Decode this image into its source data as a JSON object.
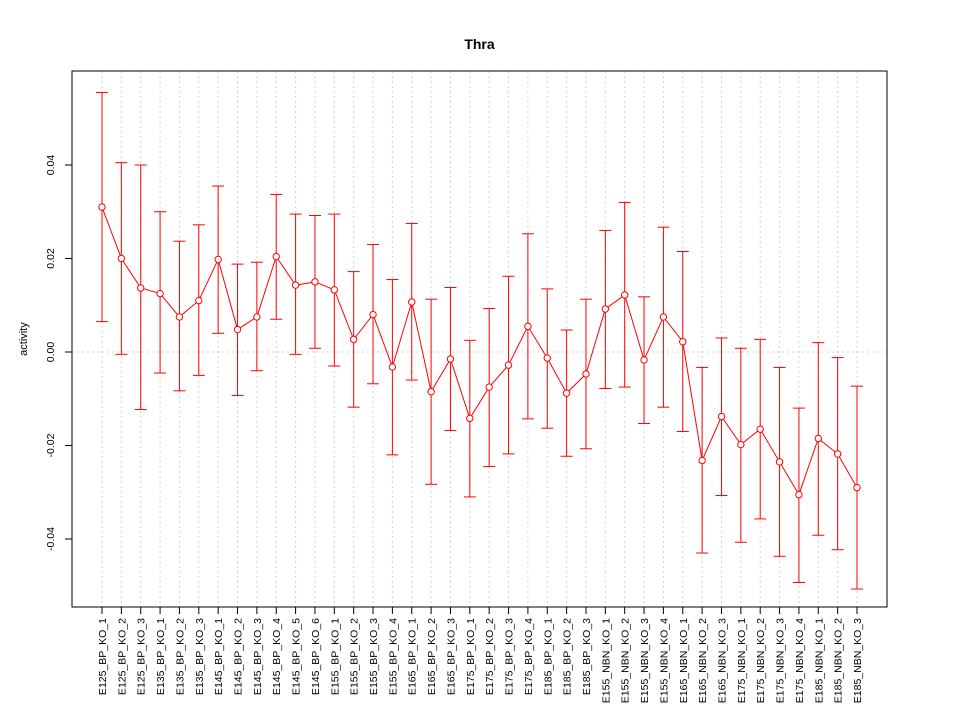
{
  "chart_data": {
    "type": "line",
    "title": "Thra",
    "xlabel": "",
    "ylabel": "activity",
    "ylim": [
      -0.055,
      0.06
    ],
    "yticks": [
      -0.04,
      -0.02,
      0.0,
      0.02,
      0.04
    ],
    "ytick_labels": [
      "-0.04",
      "-0.02",
      "0.00",
      "0.02",
      "0.04"
    ],
    "grid": true,
    "color": "#ff0000",
    "categories": [
      "E125_BP_KO_1",
      "E125_BP_KO_2",
      "E125_BP_KO_3",
      "E135_BP_KO_1",
      "E135_BP_KO_2",
      "E135_BP_KO_3",
      "E145_BP_KO_1",
      "E145_BP_KO_2",
      "E145_BP_KO_3",
      "E145_BP_KO_4",
      "E145_BP_KO_5",
      "E145_BP_KO_6",
      "E155_BP_KO_1",
      "E155_BP_KO_2",
      "E155_BP_KO_3",
      "E155_BP_KO_4",
      "E165_BP_KO_1",
      "E165_BP_KO_2",
      "E165_BP_KO_3",
      "E175_BP_KO_1",
      "E175_BP_KO_2",
      "E175_BP_KO_3",
      "E175_BP_KO_4",
      "E185_BP_KO_1",
      "E185_BP_KO_2",
      "E185_BP_KO_3",
      "E155_NBN_KO_1",
      "E155_NBN_KO_2",
      "E155_NBN_KO_3",
      "E155_NBN_KO_4",
      "E165_NBN_KO_1",
      "E165_NBN_KO_2",
      "E165_NBN_KO_3",
      "E175_NBN_KO_1",
      "E175_NBN_KO_2",
      "E175_NBN_KO_3",
      "E175_NBN_KO_4",
      "E185_NBN_KO_1",
      "E185_NBN_KO_2",
      "E185_NBN_KO_3"
    ],
    "values": [
      0.031,
      0.02,
      0.0137,
      0.0125,
      0.0075,
      0.011,
      0.0198,
      0.0048,
      0.0075,
      0.0204,
      0.0143,
      0.015,
      0.0133,
      0.0027,
      0.008,
      -0.0032,
      0.0107,
      -0.0085,
      -0.0015,
      -0.0142,
      -0.0075,
      -0.0028,
      0.0055,
      -0.0013,
      -0.0088,
      -0.0047,
      0.0092,
      0.0122,
      -0.0017,
      0.0075,
      0.0022,
      -0.0232,
      -0.0138,
      -0.0198,
      -0.0165,
      -0.0235,
      -0.0305,
      -0.0185,
      -0.0218,
      -0.029
    ],
    "upper": [
      0.0555,
      0.0405,
      0.04,
      0.03,
      0.0237,
      0.0272,
      0.0355,
      0.0188,
      0.0192,
      0.0337,
      0.0295,
      0.0292,
      0.0295,
      0.0172,
      0.023,
      0.0155,
      0.0275,
      0.0113,
      0.0138,
      0.0025,
      0.0093,
      0.0162,
      0.0253,
      0.0135,
      0.0047,
      0.0113,
      0.026,
      0.032,
      0.0118,
      0.0267,
      0.0215,
      -0.0033,
      0.003,
      0.0008,
      0.0027,
      -0.0033,
      -0.012,
      0.002,
      -0.0012,
      -0.0073
    ],
    "lower": [
      0.0065,
      -0.0005,
      -0.0123,
      -0.0045,
      -0.0083,
      -0.005,
      0.004,
      -0.0093,
      -0.004,
      0.007,
      -0.0005,
      0.0008,
      -0.003,
      -0.0118,
      -0.0068,
      -0.022,
      -0.006,
      -0.0283,
      -0.0168,
      -0.031,
      -0.0245,
      -0.0218,
      -0.0143,
      -0.0163,
      -0.0223,
      -0.0207,
      -0.0078,
      -0.0075,
      -0.0153,
      -0.0118,
      -0.017,
      -0.043,
      -0.0307,
      -0.0407,
      -0.0357,
      -0.0437,
      -0.0493,
      -0.0392,
      -0.0423,
      -0.0507
    ]
  }
}
